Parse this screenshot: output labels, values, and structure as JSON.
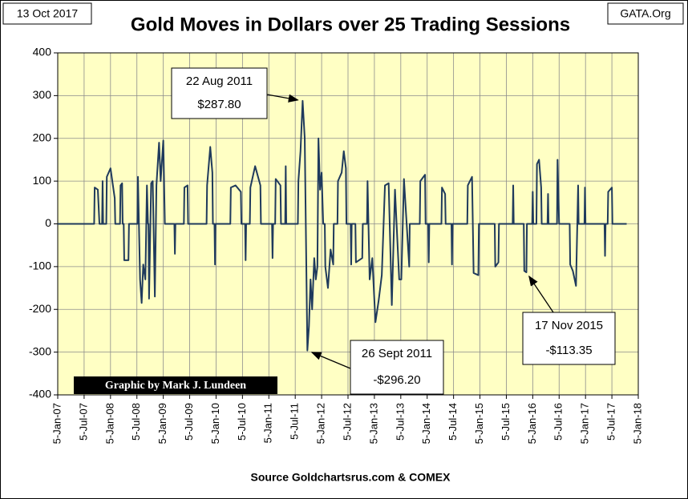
{
  "chart_data": {
    "type": "line",
    "title": "Gold Moves in Dollars over 25 Trading Sessions",
    "date_stamp": "13 Oct 2017",
    "site": "GATA.Org",
    "credit": "Graphic by Mark J. Lundeen",
    "source": "Source Goldchartsrus.com & COMEX",
    "x": [
      2007.0,
      2007.69,
      2007.7,
      2007.76,
      2007.79,
      2007.84,
      2007.85,
      2007.86,
      2007.92,
      2007.93,
      2008.0,
      2008.08,
      2008.09,
      2008.18,
      2008.19,
      2008.22,
      2008.23,
      2008.25,
      2008.26,
      2008.34,
      2008.35,
      2008.51,
      2008.52,
      2008.56,
      2008.59,
      2008.62,
      2008.66,
      2008.69,
      2008.71,
      2008.72,
      2008.73,
      2008.77,
      2008.8,
      2008.84,
      2008.87,
      2008.92,
      2008.95,
      2009.0,
      2009.03,
      2009.21,
      2009.22,
      2009.23,
      2009.39,
      2009.4,
      2009.46,
      2009.47,
      2009.82,
      2009.83,
      2009.89,
      2009.93,
      2009.94,
      2009.97,
      2009.98,
      2009.99,
      2010.27,
      2010.28,
      2010.37,
      2010.47,
      2010.48,
      2010.55,
      2010.56,
      2010.57,
      2010.64,
      2010.65,
      2010.74,
      2010.84,
      2010.85,
      2011.06,
      2011.07,
      2011.08,
      2011.12,
      2011.13,
      2011.22,
      2011.23,
      2011.31,
      2011.32,
      2011.33,
      2011.55,
      2011.56,
      2011.6,
      2011.64,
      2011.68,
      2011.73,
      2011.76,
      2011.79,
      2011.82,
      2011.86,
      2011.89,
      2011.92,
      2011.94,
      2011.97,
      2012.0,
      2012.03,
      2012.06,
      2012.07,
      2012.12,
      2012.17,
      2012.22,
      2012.23,
      2012.3,
      2012.31,
      2012.38,
      2012.42,
      2012.46,
      2012.47,
      2012.55,
      2012.56,
      2012.57,
      2012.64,
      2012.65,
      2012.77,
      2012.78,
      2012.86,
      2012.87,
      2012.91,
      2012.96,
      2013.02,
      2013.08,
      2013.14,
      2013.2,
      2013.27,
      2013.33,
      2013.39,
      2013.47,
      2013.51,
      2013.56,
      2013.66,
      2013.67,
      2013.86,
      2013.87,
      2013.96,
      2013.97,
      2014.02,
      2014.03,
      2014.04,
      2014.27,
      2014.28,
      2014.34,
      2014.35,
      2014.46,
      2014.47,
      2014.48,
      2014.76,
      2014.77,
      2014.85,
      2014.88,
      2014.97,
      2014.98,
      2015.28,
      2015.29,
      2015.35,
      2015.36,
      2015.62,
      2015.63,
      2015.64,
      2015.83,
      2015.84,
      2015.88,
      2015.89,
      2015.99,
      2016.0,
      2016.01,
      2016.07,
      2016.08,
      2016.12,
      2016.16,
      2016.17,
      2016.28,
      2016.29,
      2016.3,
      2016.46,
      2016.47,
      2016.5,
      2016.7,
      2016.71,
      2016.76,
      2016.82,
      2016.86,
      2016.87,
      2016.98,
      2016.99,
      2017.0,
      2017.36,
      2017.37,
      2017.38,
      2017.42,
      2017.43,
      2017.5,
      2017.51,
      2017.78
    ],
    "series": [
      {
        "color": "#1f3a5c",
        "values": [
          0,
          0,
          85,
          80,
          0,
          0,
          100,
          0,
          0,
          110,
          130,
          60,
          0,
          0,
          90,
          95,
          0,
          0,
          -85,
          -85,
          0,
          0,
          110,
          -130,
          -185,
          -95,
          -130,
          90,
          0,
          0,
          -175,
          95,
          100,
          -170,
          90,
          190,
          100,
          195,
          0,
          0,
          -70,
          0,
          0,
          85,
          90,
          0,
          0,
          90,
          180,
          120,
          0,
          0,
          -95,
          0,
          0,
          85,
          90,
          75,
          0,
          0,
          -85,
          0,
          0,
          85,
          135,
          90,
          0,
          0,
          -80,
          0,
          0,
          105,
          90,
          0,
          0,
          135,
          0,
          0,
          100,
          170,
          287.8,
          200,
          -296.2,
          -240,
          -130,
          -200,
          -80,
          -130,
          -100,
          200,
          80,
          120,
          0,
          0,
          -100,
          -150,
          -60,
          -95,
          0,
          0,
          100,
          120,
          170,
          130,
          0,
          0,
          -95,
          0,
          0,
          -90,
          -80,
          0,
          0,
          100,
          -130,
          -80,
          -230,
          -180,
          -120,
          90,
          95,
          -190,
          80,
          -130,
          -130,
          105,
          -100,
          0,
          0,
          100,
          115,
          0,
          0,
          -90,
          0,
          0,
          85,
          70,
          0,
          0,
          -95,
          0,
          0,
          90,
          110,
          -115,
          -120,
          0,
          0,
          -100,
          -90,
          0,
          0,
          90,
          0,
          0,
          -110,
          -113.35,
          0,
          0,
          75,
          0,
          0,
          140,
          150,
          85,
          0,
          0,
          70,
          0,
          0,
          150,
          0,
          0,
          -95,
          -110,
          -145,
          90,
          0,
          0,
          85,
          0,
          0,
          -75,
          0,
          0,
          75,
          85,
          0,
          0
        ]
      }
    ],
    "xlim": [
      2007.0,
      2018.0
    ],
    "xticks": [
      {
        "value": 2007.0,
        "label": "5-Jan-07"
      },
      {
        "value": 2007.5,
        "label": "5-Jul-07"
      },
      {
        "value": 2008.0,
        "label": "5-Jan-08"
      },
      {
        "value": 2008.5,
        "label": "5-Jul-08"
      },
      {
        "value": 2009.0,
        "label": "5-Jan-09"
      },
      {
        "value": 2009.5,
        "label": "5-Jul-09"
      },
      {
        "value": 2010.0,
        "label": "5-Jan-10"
      },
      {
        "value": 2010.5,
        "label": "5-Jul-10"
      },
      {
        "value": 2011.0,
        "label": "5-Jan-11"
      },
      {
        "value": 2011.5,
        "label": "5-Jul-11"
      },
      {
        "value": 2012.0,
        "label": "5-Jan-12"
      },
      {
        "value": 2012.5,
        "label": "5-Jul-12"
      },
      {
        "value": 2013.0,
        "label": "5-Jan-13"
      },
      {
        "value": 2013.5,
        "label": "5-Jul-13"
      },
      {
        "value": 2014.0,
        "label": "5-Jan-14"
      },
      {
        "value": 2014.5,
        "label": "5-Jul-14"
      },
      {
        "value": 2015.0,
        "label": "5-Jan-15"
      },
      {
        "value": 2015.5,
        "label": "5-Jul-15"
      },
      {
        "value": 2016.0,
        "label": "5-Jan-16"
      },
      {
        "value": 2016.5,
        "label": "5-Jul-16"
      },
      {
        "value": 2017.0,
        "label": "5-Jan-17"
      },
      {
        "value": 2017.5,
        "label": "5-Jul-17"
      },
      {
        "value": 2018.0,
        "label": "5-Jan-18"
      }
    ],
    "ylim": [
      -400,
      400
    ],
    "yticks": [
      -400,
      -300,
      -200,
      -100,
      0,
      100,
      200,
      300,
      400
    ],
    "grid": true,
    "background": "#ffffc4",
    "annotations": [
      {
        "date": "22 Aug 2011",
        "label": "$287.80",
        "x": 2011.64,
        "y": 287.8
      },
      {
        "date": "26 Sept 2011",
        "label": "-$296.20",
        "x": 2011.73,
        "y": -296.2
      },
      {
        "date": "17 Nov 2015",
        "label": "-$113.35",
        "x": 2015.88,
        "y": -113.35
      }
    ]
  }
}
